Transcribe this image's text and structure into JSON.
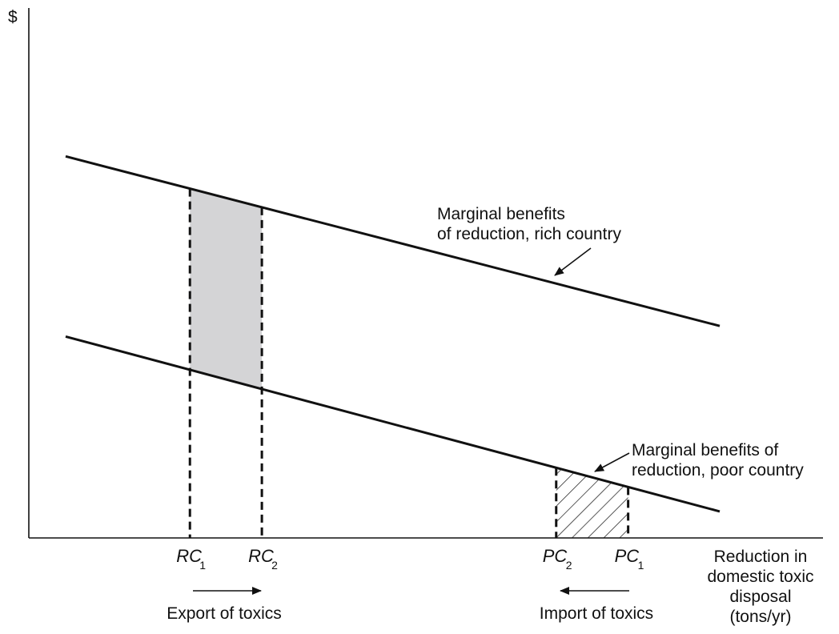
{
  "chart_data": {
    "type": "line",
    "ylabel": "$",
    "xlabel_lines": [
      "Reduction in",
      "domestic toxic",
      "disposal",
      "(tons/yr)"
    ],
    "series": [
      {
        "label_lines": [
          "Marginal benefits",
          "of reduction, rich country"
        ],
        "values": [
          [
            0,
            0.72
          ],
          [
            1,
            0.4
          ]
        ]
      },
      {
        "label_lines": [
          "Marginal benefits of",
          "reduction, poor country"
        ],
        "values": [
          [
            0,
            0.38
          ],
          [
            1,
            0.05
          ]
        ]
      }
    ],
    "ticks": [
      {
        "main": "RC",
        "sub": "1",
        "x": 0.19
      },
      {
        "main": "RC",
        "sub": "2",
        "x": 0.3
      },
      {
        "main": "PC",
        "sub": "2",
        "x": 0.75
      },
      {
        "main": "PC",
        "sub": "1",
        "x": 0.86
      }
    ],
    "annotations": {
      "export": "Export of toxics",
      "import": "Import of toxics"
    },
    "regions": [
      {
        "name": "export-region",
        "from": 0.19,
        "to": 0.3,
        "under": "rich",
        "over": "poor",
        "style": "gray"
      },
      {
        "name": "import-region",
        "from": 0.75,
        "to": 0.86,
        "under": "poor",
        "over": "axis",
        "style": "hatched"
      }
    ],
    "colors": {
      "line": "#111111",
      "shade": "#d4d4d6"
    },
    "xlim": [
      0,
      1
    ],
    "ylim": [
      0,
      1
    ]
  }
}
